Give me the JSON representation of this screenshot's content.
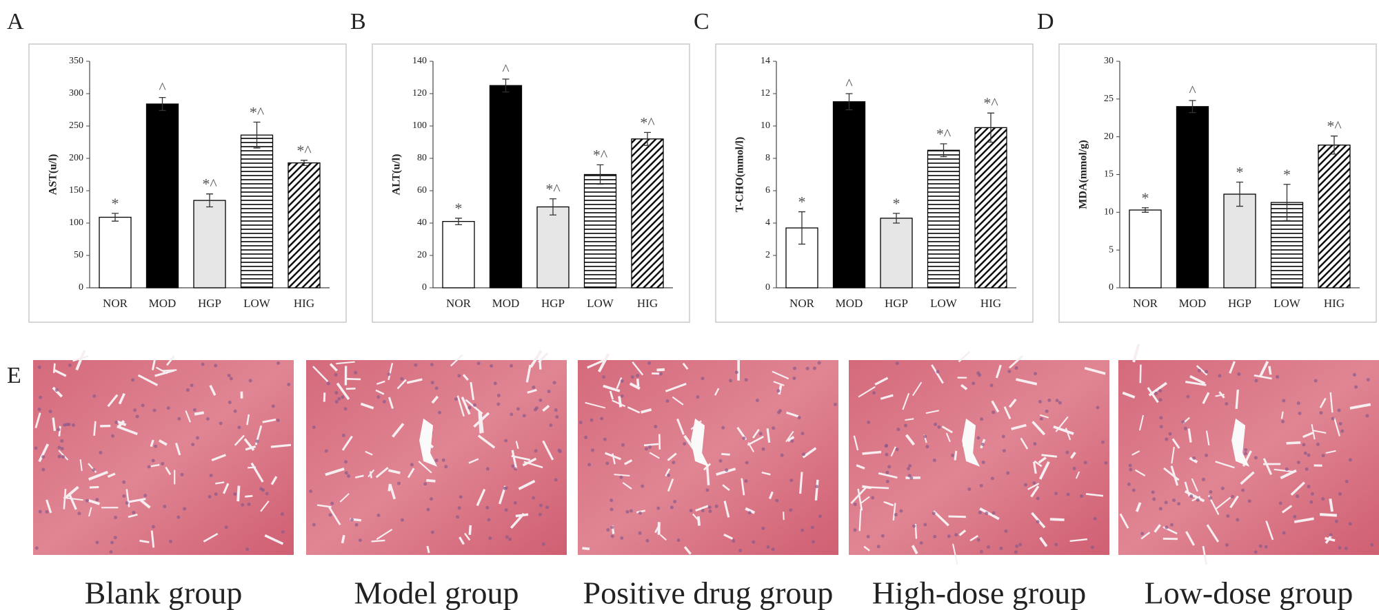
{
  "chart_data": [
    {
      "type": "bar",
      "panel_label": "A",
      "y_label": "AST(u/l)",
      "categories": [
        "NOR",
        "MOD",
        "HGP",
        "LOW",
        "HIG"
      ],
      "values": [
        109,
        284,
        135,
        236,
        193
      ],
      "errors": [
        6,
        10,
        10,
        20,
        4
      ],
      "annotations": [
        "*",
        "^",
        "*^",
        "*^",
        "*^"
      ],
      "colors": [
        "#ffffff",
        "#000000",
        "#e6e6e6",
        "#ffffff",
        "#ffffff"
      ],
      "bar_styles": [
        "solid",
        "solid",
        "solid",
        "horizontal-lines",
        "diagonal-lines"
      ],
      "ylim": [
        0,
        350
      ],
      "yticks": [
        0,
        50,
        100,
        150,
        200,
        250,
        300,
        350
      ]
    },
    {
      "type": "bar",
      "panel_label": "B",
      "y_label": "ALT(u/l)",
      "categories": [
        "NOR",
        "MOD",
        "HGP",
        "LOW",
        "HIG"
      ],
      "values": [
        41,
        125,
        50,
        70,
        92
      ],
      "errors": [
        2,
        4,
        5,
        6,
        4
      ],
      "annotations": [
        "*",
        "^",
        "*^",
        "*^",
        "*^"
      ],
      "colors": [
        "#ffffff",
        "#000000",
        "#e6e6e6",
        "#ffffff",
        "#ffffff"
      ],
      "bar_styles": [
        "solid",
        "solid",
        "solid",
        "horizontal-lines",
        "diagonal-lines"
      ],
      "ylim": [
        0,
        140
      ],
      "yticks": [
        0,
        20,
        40,
        60,
        80,
        100,
        120,
        140
      ]
    },
    {
      "type": "bar",
      "panel_label": "C",
      "y_label": "T-CHO(mmol/l)",
      "categories": [
        "NOR",
        "MOD",
        "HGP",
        "LOW",
        "HIG"
      ],
      "values": [
        3.7,
        11.5,
        4.3,
        8.5,
        9.9
      ],
      "errors": [
        1.0,
        0.5,
        0.3,
        0.4,
        0.9
      ],
      "annotations": [
        "*",
        "^",
        "*",
        "*^",
        "*^"
      ],
      "colors": [
        "#ffffff",
        "#000000",
        "#e6e6e6",
        "#ffffff",
        "#ffffff"
      ],
      "bar_styles": [
        "solid",
        "solid",
        "solid",
        "horizontal-lines",
        "diagonal-lines"
      ],
      "ylim": [
        0,
        14
      ],
      "yticks": [
        0,
        2,
        4,
        6,
        8,
        10,
        12,
        14
      ]
    },
    {
      "type": "bar",
      "panel_label": "D",
      "y_label": "MDA(mmol/g)",
      "categories": [
        "NOR",
        "MOD",
        "HGP",
        "LOW",
        "HIG"
      ],
      "values": [
        10.3,
        24,
        12.4,
        11.3,
        18.9
      ],
      "errors": [
        0.3,
        0.8,
        1.6,
        2.4,
        1.2
      ],
      "annotations": [
        "*",
        "^",
        "*",
        "*",
        "*^"
      ],
      "colors": [
        "#ffffff",
        "#000000",
        "#e6e6e6",
        "#ffffff",
        "#ffffff"
      ],
      "bar_styles": [
        "solid",
        "solid",
        "solid",
        "horizontal-lines",
        "diagonal-lines"
      ],
      "ylim": [
        0,
        30
      ],
      "yticks": [
        0,
        5,
        10,
        15,
        20,
        25,
        30
      ]
    }
  ],
  "histology": {
    "panel_label": "E",
    "captions": [
      "Blank group",
      "Model group",
      "Positive drug group",
      "High-dose group",
      "Low-dose group"
    ]
  }
}
